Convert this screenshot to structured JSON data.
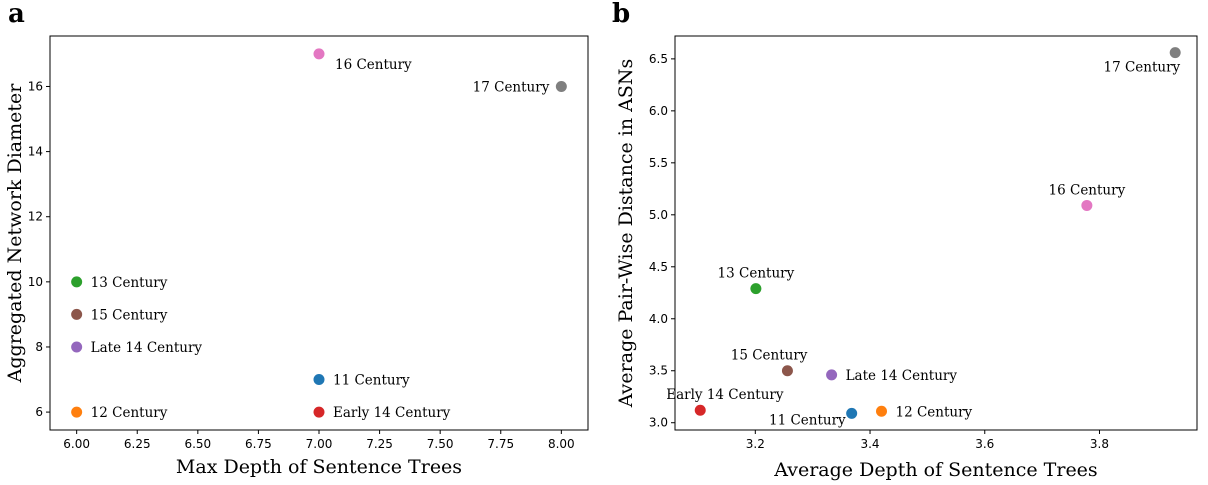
{
  "chart_data": [
    {
      "type": "scatter",
      "panel": "a",
      "xlabel": "Max Depth of Sentence Trees",
      "ylabel": "Aggregated Network Diameter",
      "xlim": [
        5.89,
        8.11
      ],
      "ylim": [
        5.45,
        17.55
      ],
      "xticks": [
        6.0,
        6.25,
        6.5,
        6.75,
        7.0,
        7.25,
        7.5,
        7.75,
        8.0
      ],
      "xtick_labels": [
        "6.00",
        "6.25",
        "6.50",
        "6.75",
        "7.00",
        "7.25",
        "7.50",
        "7.75",
        "8.00"
      ],
      "yticks": [
        6,
        8,
        10,
        12,
        14,
        16
      ],
      "ytick_labels": [
        "6",
        "8",
        "10",
        "12",
        "14",
        "16"
      ],
      "grid": false,
      "points": [
        {
          "label": "11 Century",
          "x": 7.0,
          "y": 7,
          "color": "#1f77b4",
          "pos": "right"
        },
        {
          "label": "12 Century",
          "x": 6.0,
          "y": 6,
          "color": "#ff7f0e",
          "pos": "right"
        },
        {
          "label": "13 Century",
          "x": 6.0,
          "y": 10,
          "color": "#2ca02c",
          "pos": "right"
        },
        {
          "label": "Early 14 Century",
          "x": 7.0,
          "y": 6,
          "color": "#d62728",
          "pos": "right"
        },
        {
          "label": "Late 14 Century",
          "x": 6.0,
          "y": 8,
          "color": "#9467bd",
          "pos": "right"
        },
        {
          "label": "15 Century",
          "x": 6.0,
          "y": 9,
          "color": "#8c564b",
          "pos": "right"
        },
        {
          "label": "16 Century",
          "x": 7.0,
          "y": 17,
          "color": "#e377c2",
          "pos": "right-below"
        },
        {
          "label": "17 Century",
          "x": 8.0,
          "y": 16,
          "color": "#7f7f7f",
          "pos": "left"
        }
      ]
    },
    {
      "type": "scatter",
      "panel": "b",
      "xlabel": "Average Depth of Sentence Trees",
      "ylabel": "Average Pair-Wise Distance in ASNs",
      "xlim": [
        3.06,
        3.97
      ],
      "ylim": [
        2.93,
        6.72
      ],
      "xticks": [
        3.2,
        3.4,
        3.6,
        3.8
      ],
      "xtick_labels": [
        "3.2",
        "3.4",
        "3.6",
        "3.8"
      ],
      "yticks": [
        3.0,
        3.5,
        4.0,
        4.5,
        5.0,
        5.5,
        6.0,
        6.5
      ],
      "ytick_labels": [
        "3.0",
        "3.5",
        "4.0",
        "4.5",
        "5.0",
        "5.5",
        "6.0",
        "6.5"
      ],
      "grid": false,
      "points": [
        {
          "label": "11 Century",
          "x": 3.368,
          "y": 3.09,
          "color": "#1f77b4",
          "pos": "left-below"
        },
        {
          "label": "12 Century",
          "x": 3.42,
          "y": 3.11,
          "color": "#ff7f0e",
          "pos": "right"
        },
        {
          "label": "13 Century",
          "x": 3.201,
          "y": 4.29,
          "color": "#2ca02c",
          "pos": "above"
        },
        {
          "label": "Early 14 Century",
          "x": 3.104,
          "y": 3.12,
          "color": "#d62728",
          "pos": "above-right"
        },
        {
          "label": "Late 14 Century",
          "x": 3.333,
          "y": 3.46,
          "color": "#9467bd",
          "pos": "right"
        },
        {
          "label": "15 Century",
          "x": 3.256,
          "y": 3.5,
          "color": "#8c564b",
          "pos": "above-left"
        },
        {
          "label": "16 Century",
          "x": 3.778,
          "y": 5.09,
          "color": "#e377c2",
          "pos": "above"
        },
        {
          "label": "17 Century",
          "x": 3.932,
          "y": 6.56,
          "color": "#7f7f7f",
          "pos": "below-left"
        }
      ]
    }
  ]
}
